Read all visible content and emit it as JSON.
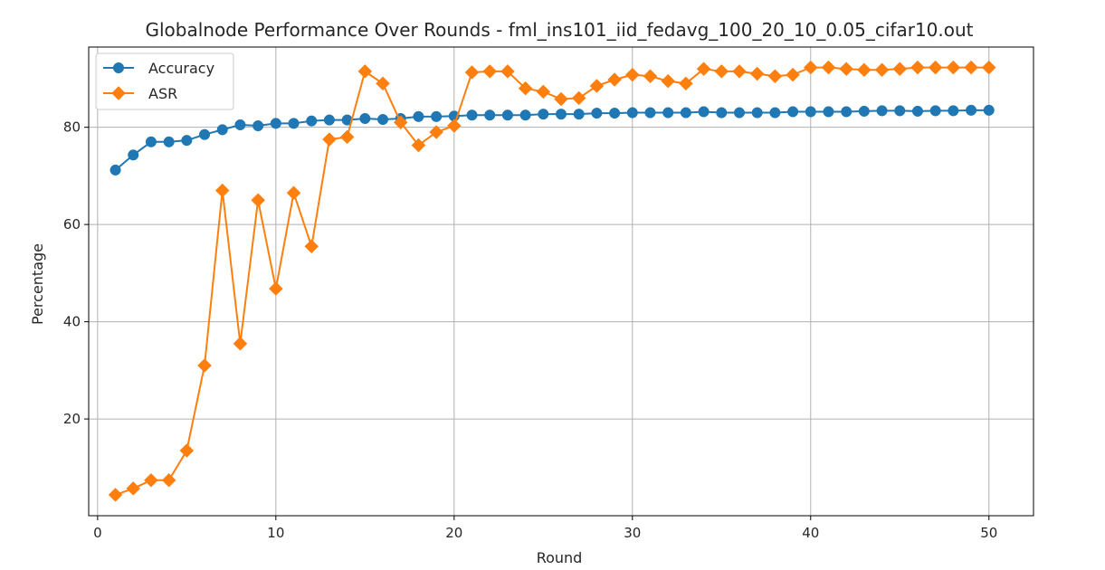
{
  "chart_data": {
    "type": "line",
    "title": "Globalnode Performance Over Rounds - fml_ins101_iid_fedavg_100_20_10_0.05_cifar10.out",
    "xlabel": "Round",
    "ylabel": "Percentage",
    "xlim": [
      -0.5,
      52.5
    ],
    "ylim": [
      0.1,
      96.5
    ],
    "xticks": [
      0,
      10,
      20,
      30,
      40,
      50
    ],
    "yticks": [
      20,
      40,
      60,
      80
    ],
    "grid": true,
    "legend_position": "top-left",
    "x": [
      1,
      2,
      3,
      4,
      5,
      6,
      7,
      8,
      9,
      10,
      11,
      12,
      13,
      14,
      15,
      16,
      17,
      18,
      19,
      20,
      21,
      22,
      23,
      24,
      25,
      26,
      27,
      28,
      29,
      30,
      31,
      32,
      33,
      34,
      35,
      36,
      37,
      38,
      39,
      40,
      41,
      42,
      43,
      44,
      45,
      46,
      47,
      48,
      49,
      50
    ],
    "series": [
      {
        "name": "Accuracy",
        "color": "#1f77b4",
        "marker": "circle",
        "values": [
          71.2,
          74.3,
          77.0,
          77.0,
          77.3,
          78.5,
          79.5,
          80.5,
          80.3,
          80.8,
          80.8,
          81.3,
          81.5,
          81.5,
          81.8,
          81.6,
          81.8,
          82.2,
          82.2,
          82.3,
          82.5,
          82.5,
          82.5,
          82.5,
          82.7,
          82.7,
          82.7,
          82.9,
          82.9,
          83.0,
          83.0,
          83.0,
          83.0,
          83.2,
          83.0,
          83.0,
          83.0,
          83.0,
          83.2,
          83.2,
          83.2,
          83.2,
          83.3,
          83.4,
          83.4,
          83.3,
          83.4,
          83.4,
          83.5,
          83.5
        ]
      },
      {
        "name": "ASR",
        "color": "#ff7f0e",
        "marker": "diamond",
        "values": [
          4.4,
          5.7,
          7.4,
          7.4,
          13.5,
          31.0,
          67.0,
          35.5,
          65.0,
          46.8,
          66.5,
          55.5,
          77.5,
          78.0,
          91.5,
          89.0,
          81.0,
          76.3,
          79.0,
          80.3,
          91.3,
          91.5,
          91.5,
          88.0,
          87.3,
          85.8,
          86.0,
          88.5,
          89.8,
          90.8,
          90.5,
          89.5,
          89.0,
          92.0,
          91.5,
          91.5,
          91.0,
          90.5,
          90.8,
          92.3,
          92.3,
          92.0,
          91.8,
          91.8,
          92.0,
          92.3,
          92.3,
          92.3,
          92.3,
          92.3
        ]
      }
    ]
  }
}
